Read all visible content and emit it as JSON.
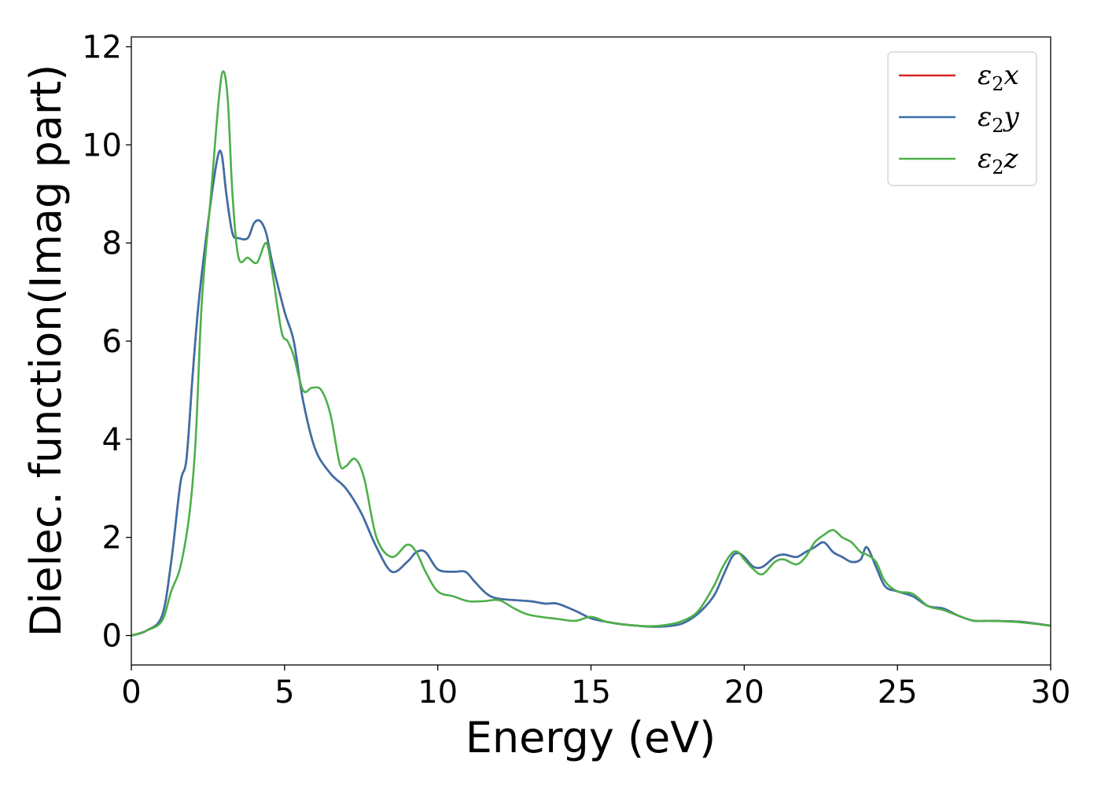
{
  "chart_data": {
    "type": "line",
    "title": "",
    "xlabel": "Energy (eV)",
    "ylabel": "Dielec. function(Imag part)",
    "xlim": [
      0,
      30
    ],
    "ylim": [
      -0.6,
      12.2
    ],
    "xticks": [
      0,
      5,
      10,
      15,
      20,
      25,
      30
    ],
    "yticks": [
      0,
      2,
      4,
      6,
      8,
      10,
      12
    ],
    "grid": false,
    "legend_position": "top-right",
    "series": [
      {
        "name": "ε₂x",
        "legend_base": "ε",
        "legend_sub": "2",
        "legend_suffix": "x",
        "color": "#d62728",
        "x": [
          0,
          0.5,
          1.0,
          1.3,
          1.6,
          1.8,
          2.0,
          2.2,
          2.5,
          2.8,
          2.95,
          3.1,
          3.3,
          3.5,
          3.8,
          4.0,
          4.2,
          4.4,
          4.6,
          5.0,
          5.3,
          5.6,
          6.0,
          6.5,
          7.0,
          7.5,
          8.0,
          8.5,
          9.0,
          9.3,
          9.6,
          10.0,
          10.5,
          10.9,
          11.2,
          11.6,
          12.0,
          13.0,
          13.5,
          13.9,
          14.5,
          15.0,
          15.5,
          16.0,
          16.5,
          17.0,
          17.5,
          18.0,
          18.5,
          19.0,
          19.3,
          19.6,
          19.8,
          20.0,
          20.3,
          20.6,
          21.0,
          21.3,
          21.7,
          22.0,
          22.3,
          22.6,
          22.9,
          23.2,
          23.5,
          23.8,
          24.0,
          24.3,
          24.6,
          25.0,
          25.5,
          26.0,
          26.5,
          27.0,
          27.5,
          28.0,
          29.0,
          30.0
        ],
        "values": [
          0.0,
          0.1,
          0.4,
          1.5,
          3.1,
          3.6,
          5.3,
          6.8,
          8.4,
          9.7,
          9.8,
          9.0,
          8.2,
          8.1,
          8.1,
          8.4,
          8.45,
          8.2,
          7.6,
          6.6,
          6.0,
          4.8,
          3.8,
          3.3,
          3.0,
          2.5,
          1.8,
          1.3,
          1.5,
          1.7,
          1.7,
          1.35,
          1.3,
          1.3,
          1.1,
          0.85,
          0.75,
          0.7,
          0.65,
          0.65,
          0.5,
          0.35,
          0.28,
          0.23,
          0.2,
          0.18,
          0.19,
          0.25,
          0.45,
          0.8,
          1.2,
          1.6,
          1.68,
          1.6,
          1.4,
          1.4,
          1.6,
          1.65,
          1.6,
          1.7,
          1.8,
          1.9,
          1.7,
          1.6,
          1.5,
          1.55,
          1.8,
          1.4,
          1.0,
          0.9,
          0.8,
          0.6,
          0.55,
          0.4,
          0.3,
          0.3,
          0.28,
          0.2
        ]
      },
      {
        "name": "ε₂y",
        "legend_base": "ε",
        "legend_sub": "2",
        "legend_suffix": "y",
        "color": "#3a6fa8",
        "x": [
          0,
          0.5,
          1.0,
          1.3,
          1.6,
          1.8,
          2.0,
          2.2,
          2.5,
          2.8,
          2.95,
          3.1,
          3.3,
          3.5,
          3.8,
          4.0,
          4.2,
          4.4,
          4.6,
          5.0,
          5.3,
          5.6,
          6.0,
          6.5,
          7.0,
          7.5,
          8.0,
          8.5,
          9.0,
          9.3,
          9.6,
          10.0,
          10.5,
          10.9,
          11.2,
          11.6,
          12.0,
          13.0,
          13.5,
          13.9,
          14.5,
          15.0,
          15.5,
          16.0,
          16.5,
          17.0,
          17.5,
          18.0,
          18.5,
          19.0,
          19.3,
          19.6,
          19.8,
          20.0,
          20.3,
          20.6,
          21.0,
          21.3,
          21.7,
          22.0,
          22.3,
          22.6,
          22.9,
          23.2,
          23.5,
          23.8,
          24.0,
          24.3,
          24.6,
          25.0,
          25.5,
          26.0,
          26.5,
          27.0,
          27.5,
          28.0,
          29.0,
          30.0
        ],
        "values": [
          0.0,
          0.1,
          0.4,
          1.5,
          3.1,
          3.6,
          5.3,
          6.8,
          8.4,
          9.7,
          9.8,
          9.0,
          8.2,
          8.1,
          8.1,
          8.4,
          8.45,
          8.2,
          7.6,
          6.6,
          6.0,
          4.8,
          3.8,
          3.3,
          3.0,
          2.5,
          1.8,
          1.3,
          1.5,
          1.7,
          1.7,
          1.35,
          1.3,
          1.3,
          1.1,
          0.85,
          0.75,
          0.7,
          0.65,
          0.65,
          0.5,
          0.35,
          0.28,
          0.23,
          0.2,
          0.18,
          0.19,
          0.25,
          0.45,
          0.8,
          1.2,
          1.6,
          1.68,
          1.6,
          1.4,
          1.4,
          1.6,
          1.65,
          1.6,
          1.7,
          1.8,
          1.9,
          1.7,
          1.6,
          1.5,
          1.55,
          1.8,
          1.4,
          1.0,
          0.9,
          0.8,
          0.6,
          0.55,
          0.4,
          0.3,
          0.3,
          0.28,
          0.2
        ]
      },
      {
        "name": "ε₂z",
        "legend_base": "ε",
        "legend_sub": "2",
        "legend_suffix": "z",
        "color": "#4daf4a",
        "x": [
          0,
          0.5,
          1.0,
          1.3,
          1.6,
          1.9,
          2.1,
          2.3,
          2.6,
          2.85,
          3.0,
          3.15,
          3.3,
          3.5,
          3.8,
          4.1,
          4.4,
          4.6,
          4.9,
          5.1,
          5.3,
          5.6,
          5.9,
          6.2,
          6.5,
          6.8,
          7.0,
          7.3,
          7.6,
          8.0,
          8.5,
          9.0,
          9.3,
          9.6,
          10.0,
          10.5,
          11.0,
          11.5,
          12.0,
          12.5,
          13.0,
          14.0,
          14.5,
          15.0,
          15.5,
          16.0,
          16.5,
          17.0,
          17.5,
          18.0,
          18.5,
          19.0,
          19.3,
          19.6,
          19.8,
          20.0,
          20.3,
          20.6,
          21.0,
          21.3,
          21.7,
          22.0,
          22.3,
          22.6,
          22.9,
          23.2,
          23.5,
          23.8,
          24.0,
          24.3,
          24.6,
          25.0,
          25.5,
          26.0,
          26.5,
          27.0,
          27.5,
          28.0,
          29.0,
          30.0
        ],
        "values": [
          0.0,
          0.1,
          0.3,
          0.9,
          1.4,
          2.5,
          4.0,
          6.8,
          9.0,
          10.9,
          11.5,
          10.9,
          9.0,
          7.7,
          7.7,
          7.6,
          8.0,
          7.4,
          6.2,
          6.0,
          5.7,
          5.0,
          5.05,
          5.0,
          4.5,
          3.5,
          3.45,
          3.6,
          3.2,
          2.0,
          1.6,
          1.85,
          1.7,
          1.3,
          0.9,
          0.8,
          0.7,
          0.7,
          0.72,
          0.55,
          0.42,
          0.33,
          0.3,
          0.38,
          0.28,
          0.23,
          0.2,
          0.19,
          0.22,
          0.3,
          0.5,
          1.0,
          1.4,
          1.68,
          1.7,
          1.55,
          1.35,
          1.25,
          1.5,
          1.55,
          1.45,
          1.6,
          1.9,
          2.05,
          2.15,
          2.0,
          1.9,
          1.7,
          1.65,
          1.5,
          1.1,
          0.9,
          0.85,
          0.6,
          0.52,
          0.4,
          0.3,
          0.3,
          0.27,
          0.2
        ]
      }
    ]
  }
}
